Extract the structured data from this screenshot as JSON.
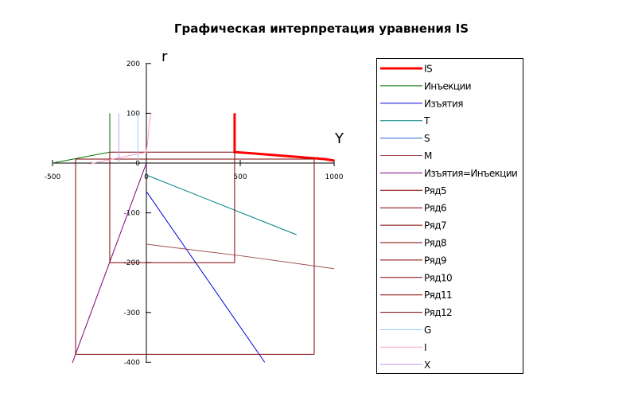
{
  "chart_data": {
    "type": "line",
    "title": "Графическая интерпретация уравнения IS",
    "xlabel": "Y",
    "ylabel": "r",
    "xlim": [
      -500,
      1000
    ],
    "ylim": [
      -400,
      200
    ],
    "x_ticks": [
      -500,
      0,
      500,
      1000
    ],
    "y_ticks": [
      200,
      100,
      0,
      -100,
      -200,
      -300,
      -400
    ],
    "grid": false,
    "legend_position": "right",
    "series": [
      {
        "name": "IS",
        "color": "#ff0000",
        "width": 3,
        "points": [
          [
            470,
            100
          ],
          [
            470,
            22
          ],
          [
            550,
            20
          ],
          [
            650,
            17
          ],
          [
            750,
            14
          ],
          [
            850,
            11
          ],
          [
            950,
            8
          ],
          [
            1000,
            5
          ]
        ]
      },
      {
        "name": "Инъекции",
        "color": "#007000",
        "width": 1,
        "points": [
          [
            -500,
            0
          ],
          [
            -195,
            22
          ],
          [
            -195,
            100
          ]
        ]
      },
      {
        "name": "Изъятия",
        "color": "#0000e0",
        "width": 1,
        "points": [
          [
            0,
            -57
          ],
          [
            630,
            -400
          ]
        ]
      },
      {
        "name": "T",
        "color": "#008080",
        "width": 1,
        "points": [
          [
            0,
            -24
          ],
          [
            800,
            -144
          ]
        ]
      },
      {
        "name": "S",
        "color": "#3060d0",
        "width": 1,
        "points": []
      },
      {
        "name": "M",
        "color": "#a05050",
        "width": 1,
        "points": [
          [
            0,
            -163
          ],
          [
            500,
            -186
          ],
          [
            1000,
            -212
          ]
        ]
      },
      {
        "name": "Изъятия=Инъекции",
        "color": "#800080",
        "width": 1,
        "points": [
          [
            0,
            0
          ],
          [
            -394,
            -401
          ]
        ]
      },
      {
        "name": "Ряд5",
        "color": "#800000",
        "width": 1,
        "points": [
          [
            -195,
            22
          ],
          [
            470,
            22
          ]
        ]
      },
      {
        "name": "Ряд6",
        "color": "#800000",
        "width": 1,
        "points": [
          [
            -195,
            22
          ],
          [
            -195,
            -200
          ]
        ]
      },
      {
        "name": "Ряд7",
        "color": "#800000",
        "width": 1,
        "points": [
          [
            -195,
            -200
          ],
          [
            470,
            -200
          ]
        ]
      },
      {
        "name": "Ряд8",
        "color": "#800000",
        "width": 1,
        "points": [
          [
            470,
            22
          ],
          [
            470,
            -200
          ]
        ]
      },
      {
        "name": "Ряд9",
        "color": "#800000",
        "width": 1,
        "points": [
          [
            -377,
            8
          ],
          [
            894,
            8
          ]
        ]
      },
      {
        "name": "Ряд10",
        "color": "#800000",
        "width": 1,
        "points": [
          [
            -377,
            8
          ],
          [
            -377,
            -384
          ]
        ]
      },
      {
        "name": "Ряд11",
        "color": "#800000",
        "width": 1,
        "points": [
          [
            -377,
            -384
          ],
          [
            894,
            -384
          ]
        ]
      },
      {
        "name": "Ряд12",
        "color": "#800000",
        "width": 1,
        "points": [
          [
            894,
            8
          ],
          [
            894,
            -384
          ]
        ]
      },
      {
        "name": "G",
        "color": "#99ccff",
        "width": 1,
        "points": [
          [
            -45,
            0
          ],
          [
            -45,
            100
          ]
        ]
      },
      {
        "name": "I",
        "color": "#ff99cc",
        "width": 1,
        "points": [
          [
            -306,
            -2
          ],
          [
            0,
            22
          ],
          [
            10,
            55
          ],
          [
            15,
            80
          ],
          [
            25,
            100
          ]
        ]
      },
      {
        "name": "X",
        "color": "#cc99ff",
        "width": 1,
        "points": [
          [
            -147,
            0
          ],
          [
            -147,
            100
          ]
        ]
      }
    ]
  }
}
